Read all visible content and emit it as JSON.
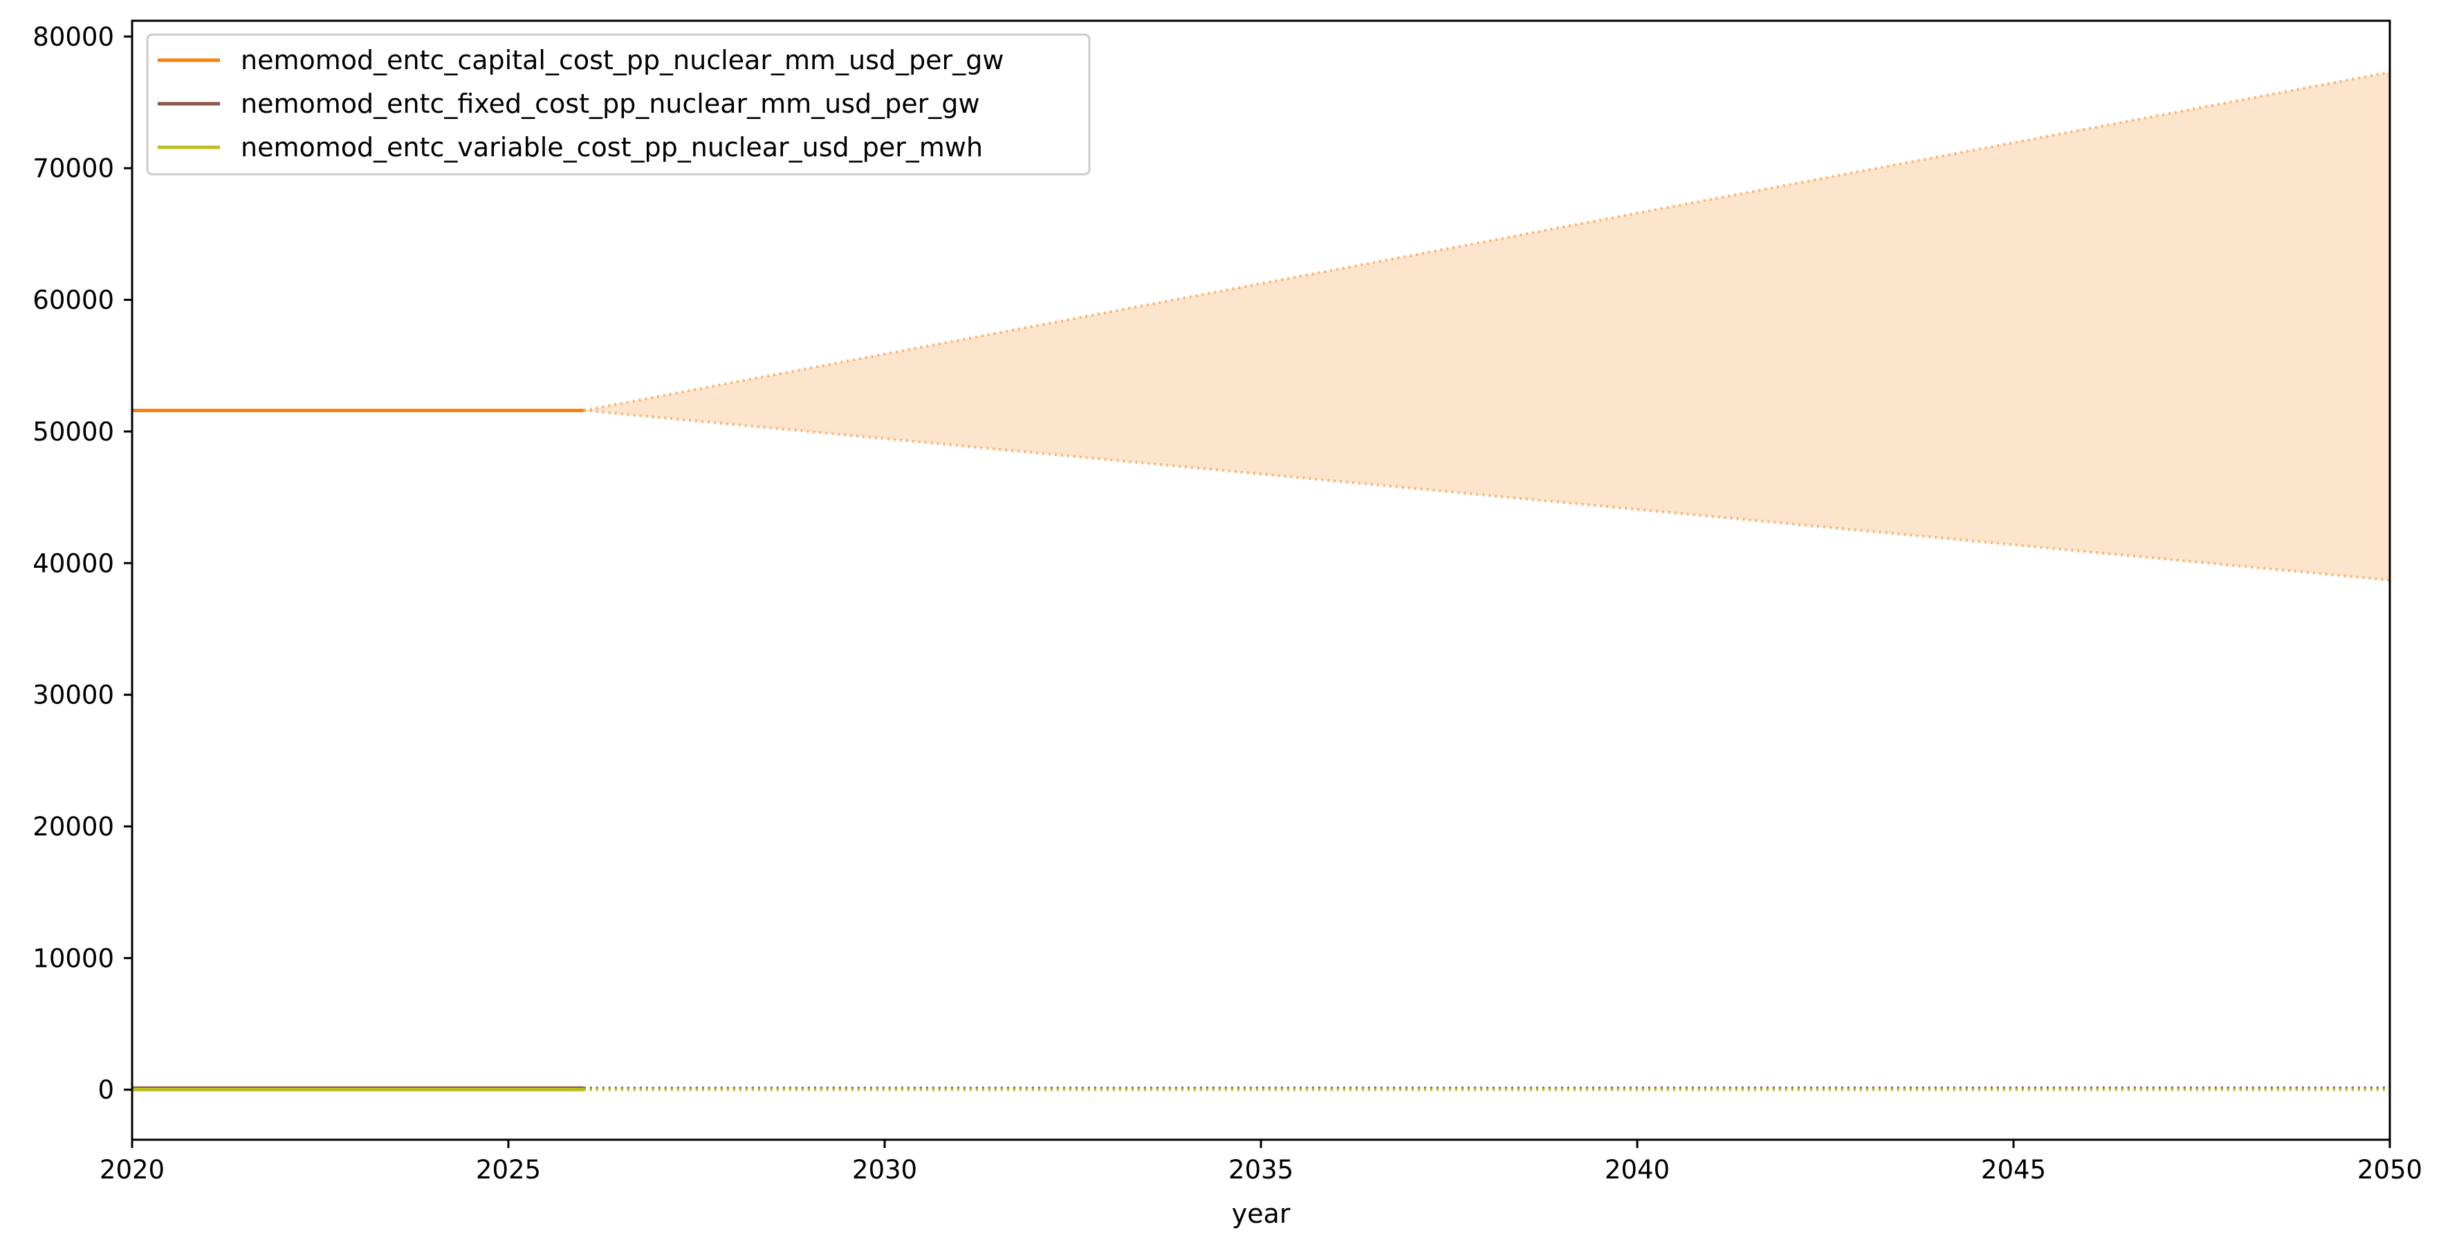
{
  "chart_data": {
    "type": "line",
    "title": "",
    "xlabel": "year",
    "ylabel": "",
    "xlim": [
      2020,
      2050
    ],
    "ylim": [
      -3800,
      81200
    ],
    "grid": false,
    "legend_position": "upper-left",
    "x_ticks": [
      2020,
      2025,
      2030,
      2035,
      2040,
      2045,
      2050
    ],
    "y_ticks": [
      0,
      10000,
      20000,
      30000,
      40000,
      50000,
      60000,
      70000,
      80000
    ],
    "series": [
      {
        "name": "nemomod_entc_capital_cost_pp_nuclear_mm_usd_per_gw",
        "color": "#ff7f0e",
        "historical": {
          "x": [
            2020,
            2026
          ],
          "y": [
            51600,
            51600
          ]
        },
        "projection_upper": {
          "x": [
            2026,
            2050
          ],
          "y": [
            51600,
            77300
          ]
        },
        "projection_lower": {
          "x": [
            2026,
            2050
          ],
          "y": [
            51600,
            38700
          ]
        },
        "band_color": "#fde4cd"
      },
      {
        "name": "nemomod_entc_fixed_cost_pp_nuclear_mm_usd_per_gw",
        "color": "#8c564b",
        "historical": {
          "x": [
            2020,
            2026
          ],
          "y": [
            120,
            120
          ]
        },
        "projection_upper": {
          "x": [
            2026,
            2050
          ],
          "y": [
            120,
            150
          ]
        },
        "projection_lower": {
          "x": [
            2026,
            2050
          ],
          "y": [
            120,
            100
          ]
        }
      },
      {
        "name": "nemomod_entc_variable_cost_pp_nuclear_usd_per_mwh",
        "color": "#bcbd22",
        "historical": {
          "x": [
            2020,
            2026
          ],
          "y": [
            10,
            10
          ]
        },
        "projection_upper": {
          "x": [
            2026,
            2050
          ],
          "y": [
            10,
            12
          ]
        },
        "projection_lower": {
          "x": [
            2026,
            2050
          ],
          "y": [
            10,
            8
          ]
        }
      }
    ]
  }
}
